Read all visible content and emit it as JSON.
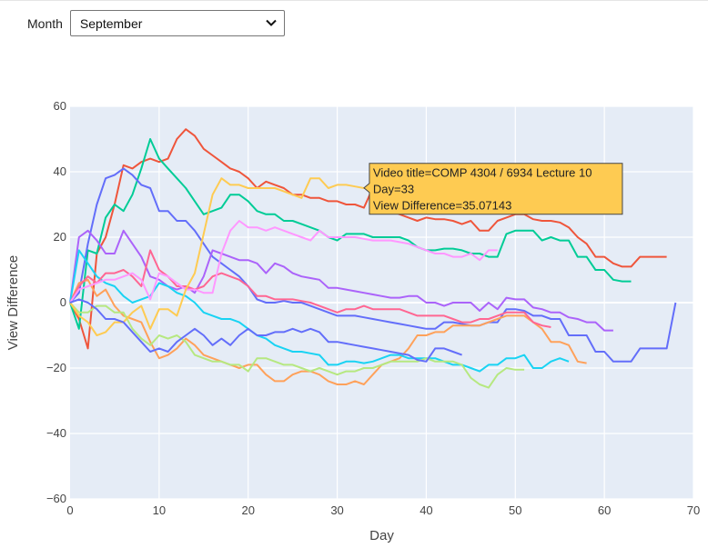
{
  "filter": {
    "label": "Month",
    "selected": "September"
  },
  "chart_data": {
    "type": "line",
    "title": "",
    "xlabel": "Day",
    "ylabel": "View Difference",
    "xlim": [
      0,
      70
    ],
    "ylim": [
      -60,
      60
    ],
    "xticks": [
      0,
      10,
      20,
      30,
      40,
      50,
      60,
      70
    ],
    "yticks": [
      -60,
      -40,
      -20,
      0,
      20,
      40,
      60
    ],
    "ytick_labels": [
      "−60",
      "−40",
      "−20",
      "0",
      "20",
      "40",
      "60"
    ],
    "grid": true,
    "legend": "none",
    "plot_background": "#E5ECF6",
    "series": [
      {
        "color": "#EF553B",
        "x": [
          0,
          1,
          2,
          3,
          4,
          5,
          6,
          7,
          8,
          9,
          10,
          11,
          12,
          13,
          14,
          15,
          16,
          17,
          18,
          19,
          20,
          21,
          22,
          23,
          24,
          25,
          26,
          27,
          28,
          29,
          30,
          31,
          32,
          33,
          34,
          35,
          36,
          37,
          38,
          39,
          40,
          41,
          42,
          43,
          44,
          45,
          46,
          47,
          48,
          49,
          50,
          51,
          52,
          53,
          54,
          55,
          56,
          57,
          58,
          59,
          60,
          61,
          62,
          63,
          64,
          65,
          66,
          67
        ],
        "y": [
          0,
          -5,
          -14,
          15,
          20,
          30,
          42,
          41,
          43,
          44,
          43,
          44,
          50,
          53,
          51,
          47,
          45,
          43,
          41,
          40,
          38,
          35,
          37,
          36,
          35,
          33,
          33,
          32,
          32,
          31,
          31,
          30,
          30,
          29,
          35.07,
          31,
          28,
          27,
          26,
          25,
          26,
          25.5,
          25.5,
          25,
          24,
          25,
          22,
          22,
          25,
          26,
          27,
          27,
          25.5,
          25,
          25,
          24.5,
          23,
          20,
          18,
          14,
          14,
          12,
          11,
          11,
          14,
          14,
          14,
          14
        ]
      },
      {
        "color": "#00CC96",
        "x": [
          0,
          1,
          2,
          3,
          4,
          5,
          6,
          7,
          8,
          9,
          10,
          11,
          12,
          13,
          14,
          15,
          16,
          17,
          18,
          19,
          20,
          21,
          22,
          23,
          24,
          25,
          26,
          27,
          28,
          29,
          30,
          31,
          32,
          33,
          34,
          35,
          36,
          37,
          38,
          39,
          40,
          41,
          42,
          43,
          44,
          45,
          46,
          47,
          48,
          49,
          50,
          51,
          52,
          53,
          54,
          55,
          56,
          57,
          58,
          59,
          60,
          61,
          62,
          63
        ],
        "y": [
          0,
          -8,
          16,
          15,
          26,
          30,
          28,
          33,
          41,
          50,
          44,
          41,
          38,
          35,
          31,
          27,
          28,
          29,
          33,
          33,
          31,
          28,
          27,
          27,
          25,
          25,
          24,
          23,
          22,
          20,
          19,
          21,
          21,
          21,
          20,
          20,
          20,
          20,
          19,
          17,
          16,
          16,
          16.5,
          16.5,
          16,
          15,
          15,
          14,
          14,
          21,
          22,
          22,
          22,
          19,
          20,
          19,
          19,
          14,
          14,
          10,
          10,
          7,
          6.5,
          6.5
        ]
      },
      {
        "color": "#636EFA",
        "x": [
          0,
          1,
          2,
          3,
          4,
          5,
          6,
          7,
          8,
          9,
          10,
          11,
          12,
          13,
          14,
          15,
          16,
          17,
          18,
          19,
          20,
          21,
          22,
          23,
          24,
          25,
          26,
          27,
          28,
          29,
          30,
          31,
          32,
          33,
          34,
          35,
          36,
          37,
          38,
          39,
          40,
          41,
          42,
          43,
          44,
          45,
          46,
          47,
          48,
          49,
          50,
          51,
          52,
          53,
          54,
          55,
          56,
          57,
          58,
          59,
          60,
          61,
          62,
          63,
          64,
          65,
          66,
          67,
          68
        ],
        "y": [
          0,
          3,
          18,
          30,
          38,
          39,
          41,
          39,
          36,
          35,
          28,
          28,
          25,
          25,
          22,
          18,
          14,
          12,
          10,
          8,
          5,
          1,
          0,
          0,
          0.5,
          0,
          0,
          -1,
          -2,
          -3,
          -4,
          -4,
          -4,
          -4.5,
          -5,
          -5.5,
          -6,
          -6.5,
          -7,
          -7.5,
          -8,
          -8,
          -6,
          -6,
          -6.5,
          -7,
          -7,
          -6,
          -6,
          -2,
          -2,
          -2.5,
          -4,
          -4,
          -5,
          -5,
          -10,
          -10,
          -10,
          -15,
          -15,
          -18,
          -18,
          -18,
          -14,
          -14,
          -14,
          -14,
          0
        ]
      },
      {
        "color": "#AB63FA",
        "x": [
          0,
          1,
          2,
          3,
          4,
          5,
          6,
          7,
          8,
          9,
          10,
          11,
          12,
          13,
          14,
          15,
          16,
          17,
          18,
          19,
          20,
          21,
          22,
          23,
          24,
          25,
          26,
          27,
          28,
          29,
          30,
          31,
          32,
          33,
          34,
          35,
          36,
          37,
          38,
          39,
          40,
          41,
          42,
          43,
          44,
          45,
          46,
          47,
          48,
          49,
          50,
          51,
          52,
          53,
          54,
          55,
          56,
          57,
          58,
          59,
          60,
          61
        ],
        "y": [
          0,
          20,
          22,
          19,
          15,
          15,
          22,
          18,
          14,
          8,
          7,
          5,
          4,
          5,
          3,
          8,
          16,
          15,
          14,
          13,
          13,
          12,
          9,
          12,
          11,
          9,
          8,
          7.5,
          7,
          4.5,
          4.5,
          4,
          3.5,
          3,
          2.5,
          2,
          1.5,
          1.5,
          2,
          2,
          0,
          0,
          -1,
          0,
          0,
          0,
          -2.5,
          0,
          -2,
          1.5,
          1,
          1,
          -1.5,
          -2,
          -3,
          -3,
          -4.5,
          -5,
          -6,
          -6,
          -8.5,
          -8.5
        ]
      },
      {
        "color": "#FFA15A",
        "x": [
          0,
          1,
          2,
          3,
          4,
          5,
          6,
          7,
          8,
          9,
          10,
          11,
          12,
          13,
          14,
          15,
          16,
          17,
          18,
          19,
          20,
          21,
          22,
          23,
          24,
          25,
          26,
          27,
          28,
          29,
          30,
          31,
          32,
          33,
          34,
          35,
          36,
          37,
          38,
          39,
          40,
          41,
          42,
          43,
          44,
          45,
          46,
          47,
          48,
          49,
          50,
          51,
          52,
          53,
          54,
          55,
          56,
          57,
          58
        ],
        "y": [
          0,
          6,
          7,
          2,
          4,
          -1,
          -4,
          -5,
          -6,
          -12,
          -17,
          -16,
          -14,
          -11,
          -13,
          -16,
          -17,
          -18,
          -19,
          -20,
          -19,
          -19,
          -22,
          -24,
          -24,
          -22,
          -21,
          -21,
          -22,
          -24,
          -25,
          -25,
          -24,
          -25,
          -22,
          -19,
          -18,
          -17,
          -14,
          -10,
          -10,
          -9,
          -9,
          -7,
          -7,
          -7,
          -7,
          -6,
          -5,
          -4,
          -4,
          -4,
          -6,
          -8,
          -12,
          -12,
          -13,
          -18,
          -18.5
        ]
      },
      {
        "color": "#19D3F3",
        "x": [
          0,
          1,
          2,
          3,
          4,
          5,
          6,
          7,
          8,
          9,
          10,
          11,
          12,
          13,
          14,
          15,
          16,
          17,
          18,
          19,
          20,
          21,
          22,
          23,
          24,
          25,
          26,
          27,
          28,
          29,
          30,
          31,
          32,
          33,
          34,
          35,
          36,
          37,
          38,
          39,
          40,
          41,
          42,
          43,
          44,
          45,
          46,
          47,
          48,
          49,
          50,
          51,
          52,
          53,
          54,
          55,
          56
        ],
        "y": [
          0,
          16,
          12,
          8,
          6,
          5,
          2,
          0,
          1,
          2,
          6,
          5,
          3,
          2,
          0,
          -3,
          -4,
          -5,
          -5,
          -6,
          -8,
          -10,
          -11,
          -13,
          -14,
          -15,
          -15,
          -15.5,
          -16,
          -19,
          -19,
          -18,
          -18,
          -18.5,
          -18,
          -17,
          -16,
          -16,
          -17,
          -17,
          -17,
          -17,
          -18,
          -19,
          -19,
          -20,
          -21,
          -19,
          -19,
          -17,
          -17,
          -16,
          -20,
          -20,
          -18,
          -17,
          -18
        ]
      },
      {
        "color": "#FF6692",
        "x": [
          0,
          1,
          2,
          3,
          4,
          5,
          6,
          7,
          8,
          9,
          10,
          11,
          12,
          13,
          14,
          15,
          16,
          17,
          18,
          19,
          20,
          21,
          22,
          23,
          24,
          25,
          26,
          27,
          28,
          29,
          30,
          31,
          32,
          33,
          34,
          35,
          36,
          37,
          38,
          39,
          40,
          41,
          42,
          43,
          44,
          45,
          46,
          47,
          48,
          49,
          50,
          51,
          52,
          53,
          54
        ],
        "y": [
          0,
          5,
          8,
          6,
          9,
          9,
          10,
          8,
          5,
          16,
          10,
          8,
          5,
          5,
          4,
          5,
          8,
          9,
          8,
          7,
          5,
          2,
          2,
          1,
          1,
          1,
          0.5,
          0,
          -1,
          -2,
          -3,
          -2,
          -2,
          -1,
          -2,
          -2,
          -2,
          -2,
          -3,
          -4,
          -4,
          -4,
          -4,
          -5,
          -6,
          -6,
          -5,
          -5,
          -4,
          -3,
          -3,
          -3,
          -6,
          -7,
          -7.5
        ]
      },
      {
        "color": "#B6E880",
        "x": [
          0,
          1,
          2,
          3,
          4,
          5,
          6,
          7,
          8,
          9,
          10,
          11,
          12,
          13,
          14,
          15,
          16,
          17,
          18,
          19,
          20,
          21,
          22,
          23,
          24,
          25,
          26,
          27,
          28,
          29,
          30,
          31,
          32,
          33,
          34,
          35,
          36,
          37,
          38,
          39,
          40,
          41,
          42,
          43,
          44,
          45,
          46,
          47,
          48,
          49,
          50,
          51
        ],
        "y": [
          0,
          -3,
          -3,
          -1,
          -1,
          -3,
          -3,
          -8,
          -11,
          -13,
          -10,
          -11,
          -10,
          -12,
          -16,
          -17,
          -18,
          -18,
          -19,
          -19,
          -21,
          -17,
          -17,
          -18,
          -19,
          -19,
          -20,
          -21,
          -20,
          -21,
          -22,
          -21,
          -21,
          -20,
          -20,
          -19,
          -18,
          -18,
          -18,
          -18,
          -17,
          -18,
          -18,
          -18,
          -19,
          -23,
          -25,
          -26,
          -22,
          -20,
          -20.5,
          -20.5
        ]
      },
      {
        "color": "#FF97FF",
        "x": [
          0,
          1,
          2,
          3,
          4,
          5,
          6,
          7,
          8,
          9,
          10,
          11,
          12,
          13,
          14,
          15,
          16,
          17,
          18,
          19,
          20,
          21,
          22,
          23,
          24,
          25,
          26,
          27,
          28,
          29,
          30,
          31,
          32,
          33,
          34,
          35,
          36,
          37,
          38,
          39,
          40,
          41,
          42,
          43,
          44,
          45,
          46,
          47,
          48
        ],
        "y": [
          0,
          4,
          5,
          6,
          7,
          7,
          8,
          9,
          7,
          1,
          9,
          8,
          6,
          4,
          4,
          3,
          3,
          15,
          22,
          25,
          23,
          23,
          22,
          23,
          22,
          21,
          20,
          19,
          22,
          20,
          20,
          20,
          20,
          19.5,
          19,
          19,
          19,
          18.5,
          18,
          17,
          16,
          15,
          15,
          14,
          14,
          15,
          13,
          16,
          16
        ]
      },
      {
        "color": "#FECB52",
        "x": [
          0,
          1,
          2,
          3,
          4,
          5,
          6,
          7,
          8,
          9,
          10,
          11,
          12,
          13,
          14,
          15,
          16,
          17,
          18,
          19,
          20,
          21,
          22,
          23,
          24,
          25,
          26,
          27,
          28,
          29,
          30,
          31,
          32,
          33,
          34,
          35
        ],
        "y": [
          0,
          -4,
          -6,
          -10,
          -9,
          -6,
          -6,
          -3,
          -1,
          -8,
          -2,
          -2,
          -4,
          4,
          9,
          21,
          33,
          38,
          36,
          36,
          35,
          35,
          35,
          35,
          34,
          33,
          32,
          38,
          38,
          35,
          36,
          36,
          35.5,
          35,
          35,
          35
        ]
      },
      {
        "color": "#636EFA",
        "x": [
          0,
          1,
          2,
          3,
          4,
          5,
          6,
          7,
          8,
          9,
          10,
          11,
          12,
          13,
          14,
          15,
          16,
          17,
          18,
          19,
          20,
          21,
          22,
          23,
          24,
          25,
          26,
          27,
          28,
          29,
          30,
          31,
          32,
          33,
          34,
          35,
          36,
          37,
          38,
          39,
          40,
          41,
          42,
          43,
          44
        ],
        "y": [
          0,
          1,
          0,
          -2,
          -5,
          -5,
          -6,
          -9,
          -12,
          -15,
          -14,
          -15,
          -12,
          -10,
          -8,
          -10,
          -13,
          -11,
          -13,
          -10,
          -8,
          -10,
          -10,
          -9,
          -9,
          -8,
          -9,
          -8,
          -9,
          -12,
          -12,
          -12.5,
          -13,
          -13.5,
          -14,
          -14.5,
          -15,
          -15.5,
          -16,
          -17.5,
          -18,
          -14,
          -14,
          -15,
          -16
        ]
      }
    ],
    "tooltip": {
      "lines": [
        "Video title=COMP 4304 / 6934 Lecture 10",
        "Day=33",
        "View Difference=35.07143"
      ],
      "anchor_x": 33,
      "anchor_y": 35.07143,
      "background": "#FECB52"
    }
  }
}
